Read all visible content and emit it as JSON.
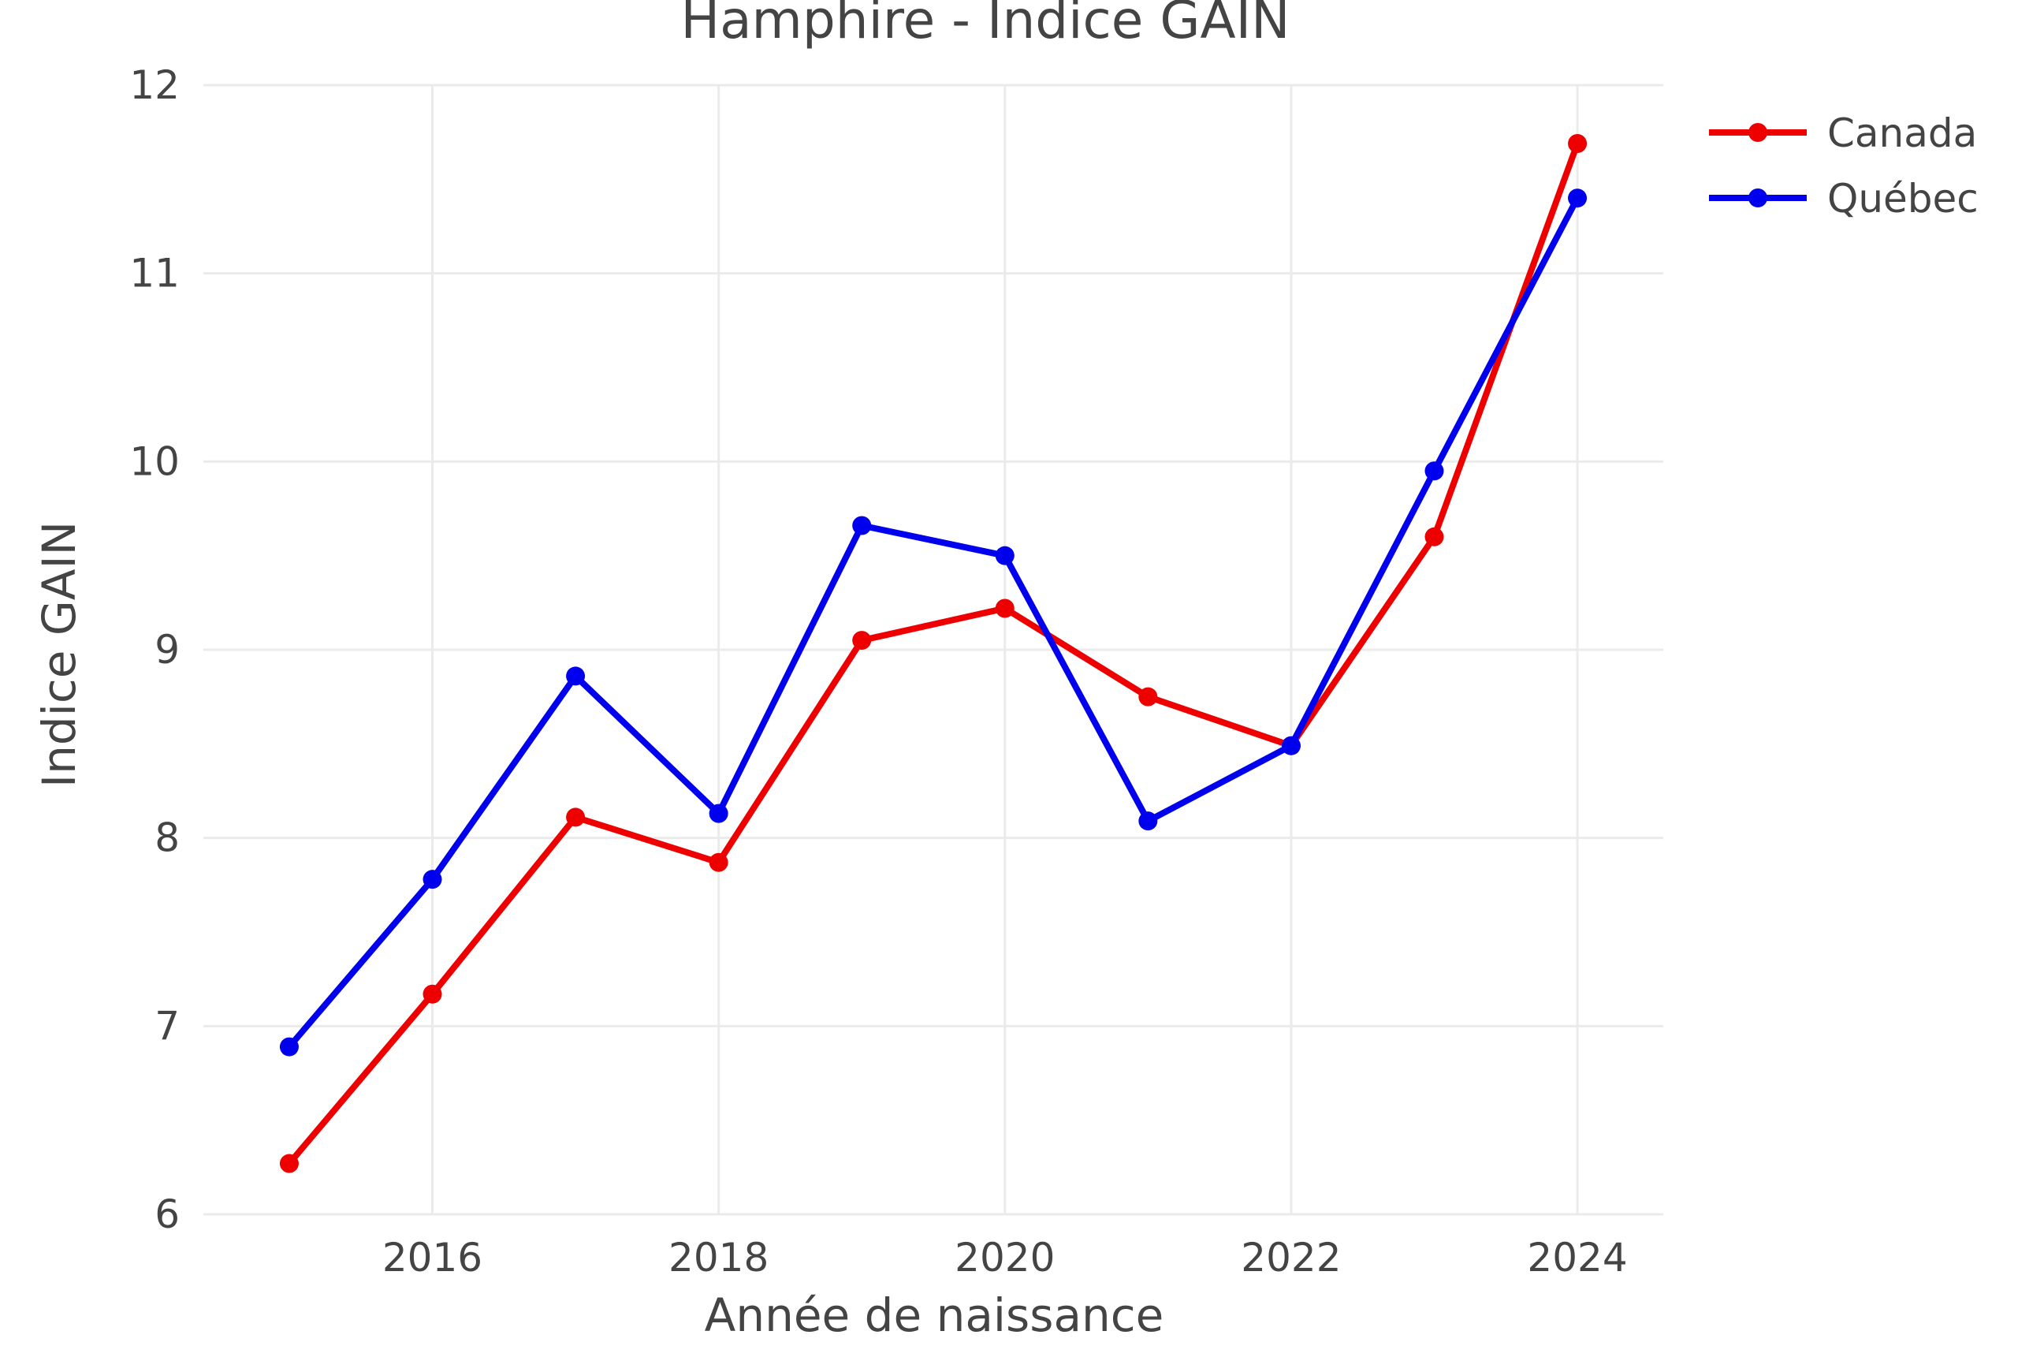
{
  "chart_data": {
    "type": "line",
    "title": "Hamphire - Indice GAIN",
    "xlabel": "Année de naissance",
    "ylabel": "Indice GAIN",
    "x": [
      2015,
      2016,
      2017,
      2018,
      2019,
      2020,
      2021,
      2022,
      2023,
      2024
    ],
    "xlim": [
      2014.4,
      2024.6
    ],
    "ylim": [
      6,
      12
    ],
    "x_ticks": [
      2016,
      2018,
      2020,
      2022,
      2024
    ],
    "x_tick_labels": [
      "2016",
      "2018",
      "2020",
      "2022",
      "2024"
    ],
    "y_ticks": [
      6,
      7,
      8,
      9,
      10,
      11,
      12
    ],
    "y_tick_labels": [
      "6",
      "7",
      "8",
      "9",
      "10",
      "11",
      "12"
    ],
    "grid": true,
    "legend_position": "top-right",
    "series": [
      {
        "name": "Canada",
        "color": "#ee0000",
        "values": [
          6.27,
          7.17,
          8.11,
          7.87,
          9.05,
          9.22,
          8.75,
          8.49,
          9.6,
          11.69
        ]
      },
      {
        "name": "Québec",
        "color": "#0000ee",
        "values": [
          6.89,
          7.78,
          8.86,
          8.13,
          9.66,
          9.5,
          8.09,
          8.49,
          9.95,
          11.4
        ]
      }
    ]
  }
}
